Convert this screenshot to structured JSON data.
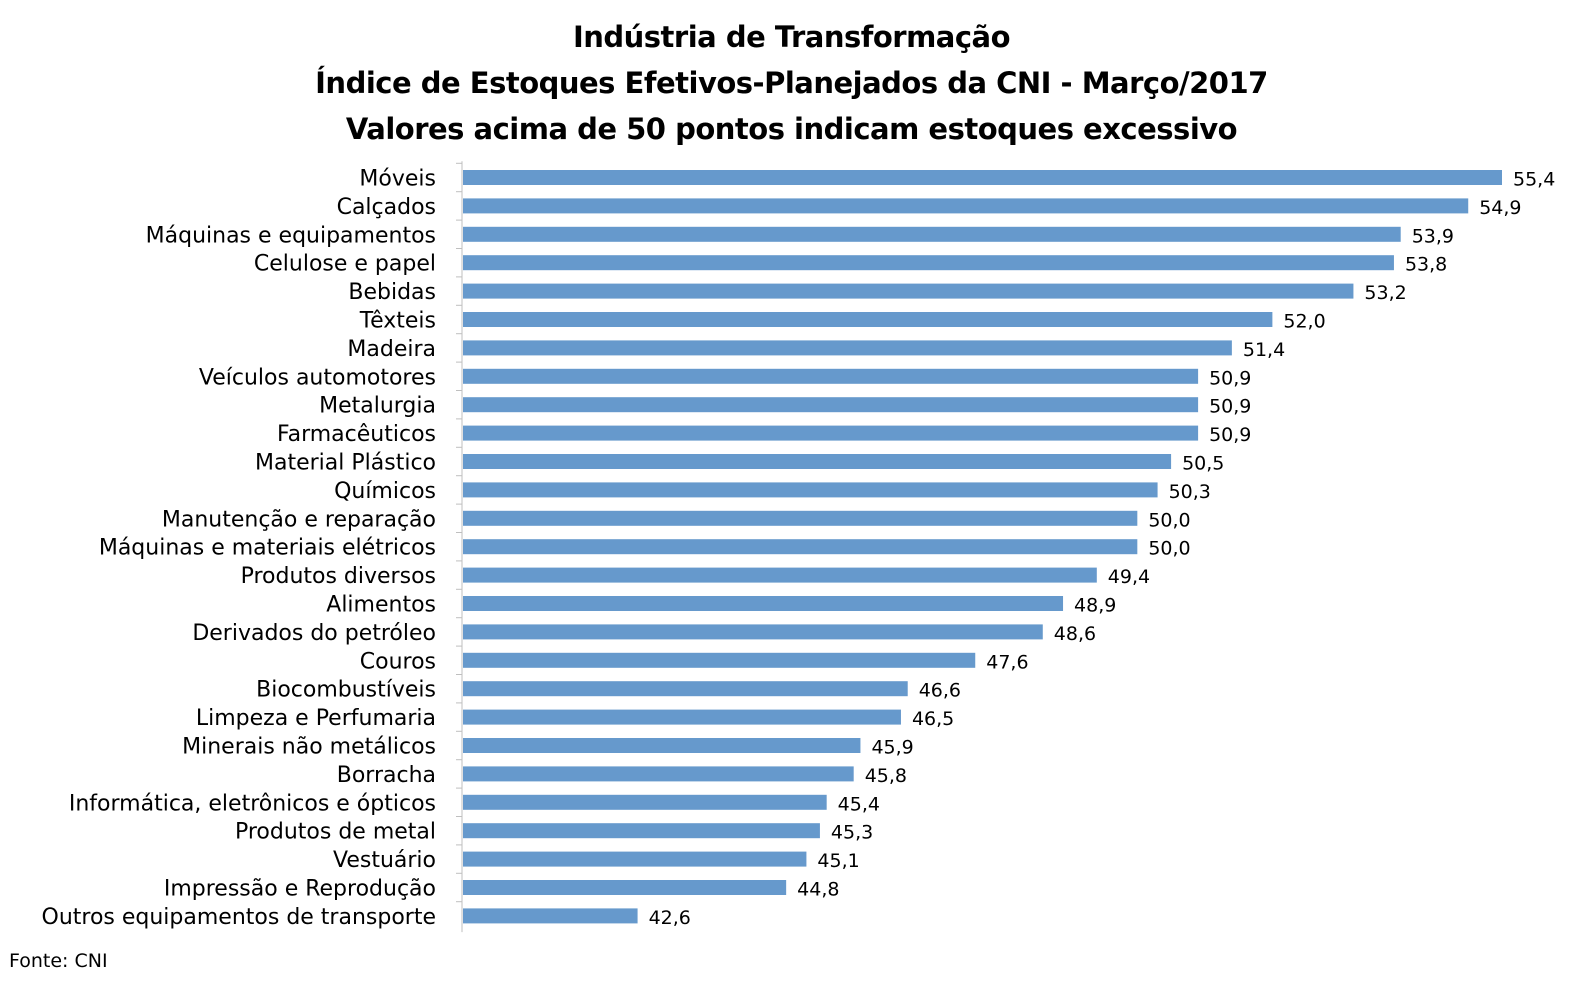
{
  "chart_data": {
    "type": "bar",
    "orientation": "horizontal",
    "title": "Indústria de Transformação",
    "subtitle": "Índice de Estoques Efetivos-Planejados da CNI - Março/2017",
    "subtitle2": "Valores acima de 50 pontos indicam estoques excessivo",
    "source": "Fonte: CNI",
    "bar_color": "#6699cc",
    "xlim": [
      40.0,
      55.4
    ],
    "grid": false,
    "legend": "none",
    "categories": [
      "Móveis",
      "Calçados",
      "Máquinas e equipamentos",
      "Celulose e papel",
      "Bebidas",
      "Têxteis",
      "Madeira",
      "Veículos automotores",
      "Metalurgia",
      "Farmacêuticos",
      "Material Plástico",
      "Químicos",
      "Manutenção e reparação",
      "Máquinas e materiais elétricos",
      "Produtos diversos",
      "Alimentos",
      "Derivados do petróleo",
      "Couros",
      "Biocombustíveis",
      "Limpeza e Perfumaria",
      "Minerais não metálicos",
      "Borracha",
      "Informática, eletrônicos e ópticos",
      "Produtos de metal",
      "Vestuário",
      "Impressão e Reprodução",
      "Outros equipamentos de transporte"
    ],
    "values": [
      55.4,
      54.9,
      53.9,
      53.8,
      53.2,
      52.0,
      51.4,
      50.9,
      50.9,
      50.9,
      50.5,
      50.3,
      50.0,
      50.0,
      49.4,
      48.9,
      48.6,
      47.6,
      46.6,
      46.5,
      45.9,
      45.8,
      45.4,
      45.3,
      45.1,
      44.8,
      42.6
    ],
    "value_labels": [
      "55,4",
      "54,9",
      "53,9",
      "53,8",
      "53,2",
      "52,0",
      "51,4",
      "50,9",
      "50,9",
      "50,9",
      "50,5",
      "50,3",
      "50,0",
      "50,0",
      "49,4",
      "48,9",
      "48,6",
      "47,6",
      "46,6",
      "46,5",
      "45,9",
      "45,8",
      "45,4",
      "45,3",
      "45,1",
      "44,8",
      "42,6"
    ]
  }
}
